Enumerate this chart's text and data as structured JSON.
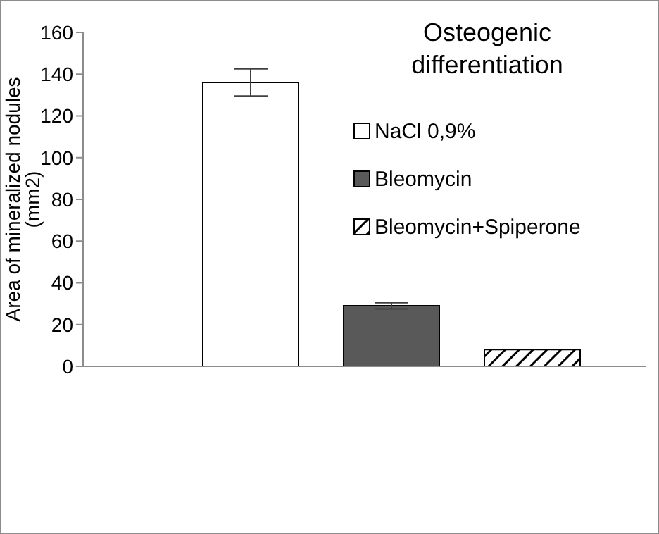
{
  "chart_data": {
    "type": "bar",
    "title": "Osteogenic differentiation",
    "ylabel": "Area of mineralized nodules (mm2)",
    "categories": [
      null
    ],
    "series": [
      {
        "name": "NaCl 0,9%",
        "color": "#ffffff",
        "values": [
          136
        ],
        "errors": [
          6.5
        ]
      },
      {
        "name": "Bleomycin",
        "color": "#595959",
        "values": [
          29
        ],
        "errors": [
          1.5
        ]
      },
      {
        "name": "Bleomycin+Spiperone",
        "color": "#000000",
        "values": [
          8
        ],
        "errors": [
          null
        ]
      }
    ],
    "ylim": [
      0,
      160
    ],
    "yticks": [
      0,
      20,
      40,
      60,
      80,
      100,
      120,
      140,
      160
    ],
    "grid": false,
    "legend": "top right"
  }
}
